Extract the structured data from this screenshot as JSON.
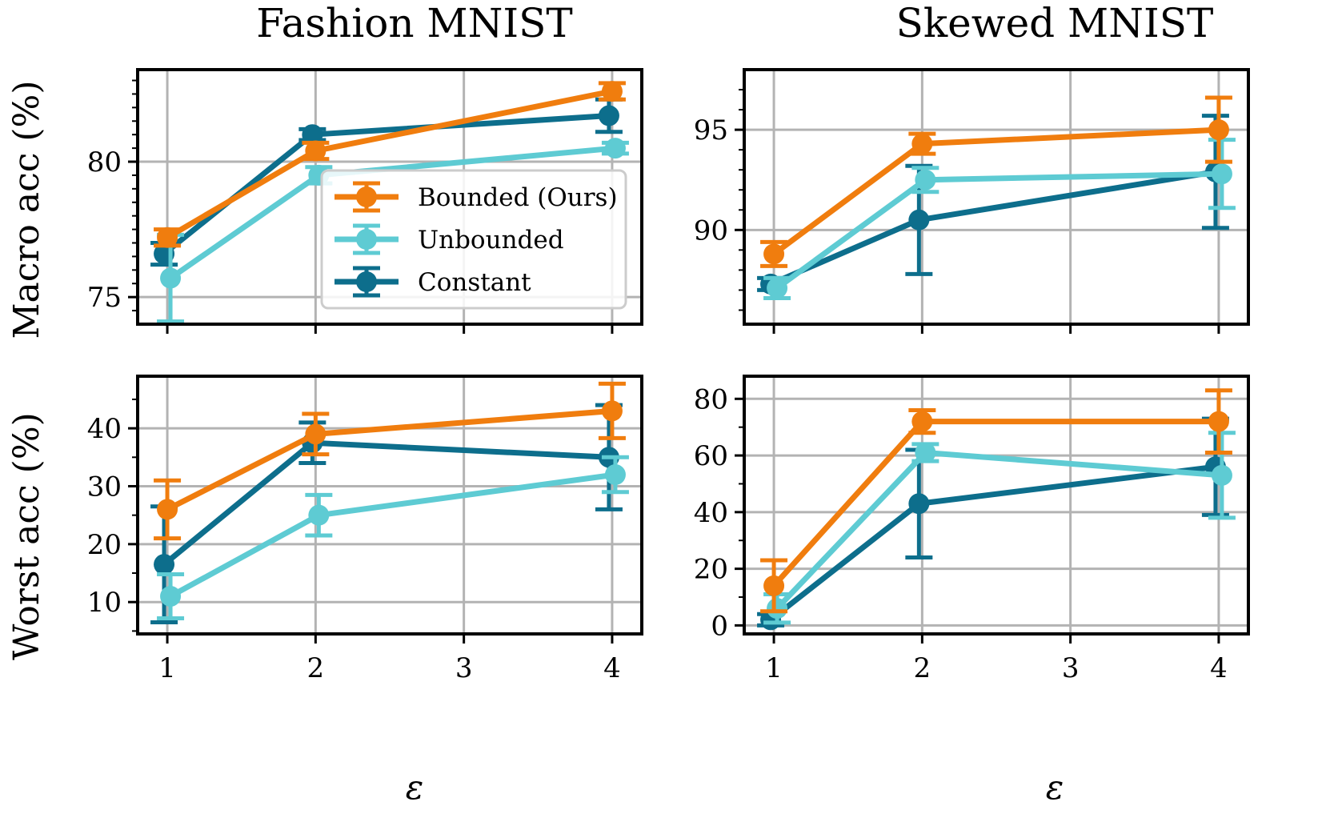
{
  "figure": {
    "col_titles": [
      "Fashion MNIST",
      "Skewed MNIST"
    ],
    "row_ylabels": [
      "Macro acc (%)",
      "Worst acc (%)"
    ],
    "xlabel": "ε",
    "legend": [
      "Bounded (Ours)",
      "Unbounded",
      "Constant"
    ],
    "colors": {
      "Bounded (Ours)": "#f07d0e",
      "Unbounded": "#5ecbd3",
      "Constant": "#0d6e8c"
    }
  },
  "chart_data": [
    {
      "type": "line",
      "title": "Fashion MNIST",
      "xlabel": "ε",
      "ylabel": "Macro acc (%)",
      "xlim": [
        0.8,
        4.2
      ],
      "ylim": [
        74,
        83.4
      ],
      "xticks": [
        1,
        2,
        3,
        4
      ],
      "yticks": [
        75,
        80
      ],
      "yminor": [
        74.5,
        75.5,
        76,
        76.5,
        77,
        77.5,
        78,
        78.5,
        79,
        79.5,
        80.5,
        81,
        81.5,
        82,
        82.5,
        83
      ],
      "grid": true,
      "legend_position": "center-right",
      "series": [
        {
          "name": "Bounded (Ours)",
          "x": [
            1,
            2,
            4
          ],
          "y": [
            77.2,
            80.4,
            82.6
          ],
          "err": [
            0.3,
            0.3,
            0.3
          ]
        },
        {
          "name": "Unbounded",
          "x": [
            1,
            2,
            4
          ],
          "y": [
            75.7,
            79.5,
            80.5
          ],
          "err": [
            1.6,
            0.3,
            0.2
          ]
        },
        {
          "name": "Constant",
          "x": [
            1,
            2,
            4
          ],
          "y": [
            76.6,
            81.0,
            81.7
          ],
          "err": [
            0.4,
            0.2,
            0.6
          ]
        }
      ]
    },
    {
      "type": "line",
      "title": "Skewed MNIST",
      "xlabel": "ε",
      "ylabel": "",
      "xlim": [
        0.8,
        4.2
      ],
      "ylim": [
        85.3,
        98.0
      ],
      "xticks": [
        1,
        2,
        3,
        4
      ],
      "yticks": [
        90,
        95
      ],
      "yminor": [
        86,
        87,
        88,
        89,
        91,
        92,
        93,
        94,
        96,
        97
      ],
      "grid": true,
      "series": [
        {
          "name": "Bounded (Ours)",
          "x": [
            1,
            2,
            4
          ],
          "y": [
            88.8,
            94.3,
            95.0
          ],
          "err": [
            0.6,
            0.5,
            1.6
          ]
        },
        {
          "name": "Unbounded",
          "x": [
            1,
            2,
            4
          ],
          "y": [
            87.1,
            92.5,
            92.8
          ],
          "err": [
            0.5,
            0.6,
            1.7
          ]
        },
        {
          "name": "Constant",
          "x": [
            1,
            2,
            4
          ],
          "y": [
            87.3,
            90.5,
            92.9
          ],
          "err": [
            0.3,
            2.7,
            2.8
          ]
        }
      ]
    },
    {
      "type": "line",
      "title": "",
      "xlabel": "ε",
      "ylabel": "Worst acc (%)",
      "xlim": [
        0.8,
        4.2
      ],
      "ylim": [
        4.5,
        49
      ],
      "xticks": [
        1,
        2,
        3,
        4
      ],
      "yticks": [
        10,
        20,
        30,
        40
      ],
      "yminor": [
        5,
        15,
        25,
        35,
        45
      ],
      "grid": true,
      "series": [
        {
          "name": "Bounded (Ours)",
          "x": [
            1,
            2,
            4
          ],
          "y": [
            26,
            39,
            43
          ],
          "err": [
            5.0,
            3.5,
            4.7
          ]
        },
        {
          "name": "Unbounded",
          "x": [
            1,
            2,
            4
          ],
          "y": [
            11,
            25,
            32
          ],
          "err": [
            3.8,
            3.5,
            3.0
          ]
        },
        {
          "name": "Constant",
          "x": [
            1,
            2,
            4
          ],
          "y": [
            16.5,
            37.5,
            35
          ],
          "err": [
            10.0,
            3.5,
            9.0
          ]
        }
      ]
    },
    {
      "type": "line",
      "title": "",
      "xlabel": "ε",
      "ylabel": "",
      "xlim": [
        0.8,
        4.2
      ],
      "ylim": [
        -3,
        88
      ],
      "xticks": [
        1,
        2,
        3,
        4
      ],
      "yticks": [
        0,
        20,
        40,
        60,
        80
      ],
      "yminor": [
        10,
        30,
        50,
        70
      ],
      "grid": true,
      "series": [
        {
          "name": "Bounded (Ours)",
          "x": [
            1,
            2,
            4
          ],
          "y": [
            14,
            72,
            72
          ],
          "err": [
            9,
            4,
            11
          ]
        },
        {
          "name": "Unbounded",
          "x": [
            1,
            2,
            4
          ],
          "y": [
            6,
            61,
            53
          ],
          "err": [
            5,
            3,
            15
          ]
        },
        {
          "name": "Constant",
          "x": [
            1,
            2,
            4
          ],
          "y": [
            2,
            43,
            56
          ],
          "err": [
            2,
            19,
            17
          ]
        }
      ]
    }
  ]
}
